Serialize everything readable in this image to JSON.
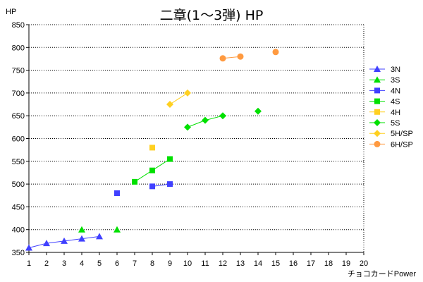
{
  "chart_data": {
    "type": "line",
    "title": "二章(1～3弾) HP",
    "ylabel": "HP",
    "xlabel": "チョコカードPower",
    "xlim": [
      1,
      20
    ],
    "ylim": [
      350,
      850
    ],
    "xticks": [
      1,
      2,
      3,
      4,
      5,
      6,
      7,
      8,
      9,
      10,
      11,
      12,
      13,
      14,
      15,
      16,
      17,
      18,
      19,
      20
    ],
    "yticks": [
      350,
      400,
      450,
      500,
      550,
      600,
      650,
      700,
      750,
      800,
      850
    ],
    "grid": "horizontal-dotted",
    "legend_position": "right",
    "series": [
      {
        "name": "3N",
        "color": "#4040ff",
        "marker": "triangle",
        "points": [
          [
            1,
            360
          ],
          [
            2,
            370
          ],
          [
            3,
            375
          ],
          [
            4,
            380
          ],
          [
            5,
            385
          ]
        ]
      },
      {
        "name": "3S",
        "color": "#00e000",
        "marker": "triangle",
        "points": [
          [
            4,
            400
          ],
          [
            6,
            400
          ]
        ],
        "connected": false
      },
      {
        "name": "4N",
        "color": "#4040ff",
        "marker": "square",
        "points": [
          [
            6,
            480
          ],
          [
            8,
            495
          ],
          [
            9,
            500
          ]
        ],
        "segments": [
          [
            [
              8,
              495
            ],
            [
              9,
              500
            ]
          ]
        ]
      },
      {
        "name": "4S",
        "color": "#00e000",
        "marker": "square",
        "points": [
          [
            7,
            505
          ],
          [
            8,
            530
          ],
          [
            9,
            555
          ]
        ]
      },
      {
        "name": "4H",
        "color": "#ffd020",
        "marker": "square",
        "points": [
          [
            8,
            580
          ]
        ]
      },
      {
        "name": "5S",
        "color": "#00e000",
        "marker": "diamond",
        "points": [
          [
            10,
            625
          ],
          [
            11,
            640
          ],
          [
            12,
            650
          ],
          [
            14,
            660
          ]
        ],
        "segments": [
          [
            [
              10,
              625
            ],
            [
              11,
              640
            ],
            [
              12,
              650
            ]
          ]
        ]
      },
      {
        "name": "5H/SP",
        "color": "#ffd020",
        "marker": "diamond",
        "points": [
          [
            9,
            675
          ],
          [
            10,
            700
          ]
        ]
      },
      {
        "name": "6H/SP",
        "color": "#ff9a40",
        "marker": "circle",
        "points": [
          [
            12,
            776
          ],
          [
            13,
            780
          ],
          [
            15,
            790
          ]
        ],
        "segments": [
          [
            [
              12,
              776
            ],
            [
              13,
              780
            ]
          ]
        ]
      }
    ]
  }
}
